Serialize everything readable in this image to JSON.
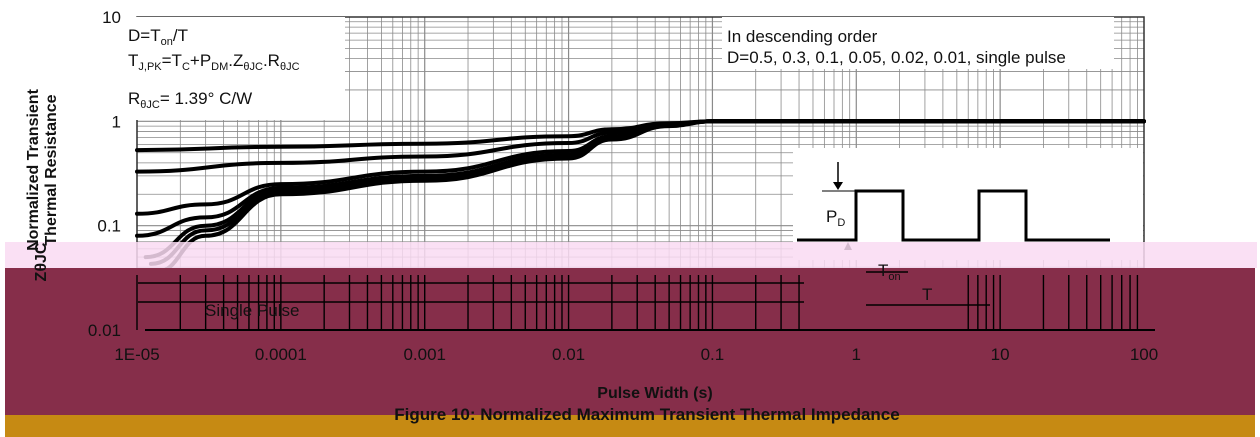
{
  "chart_data": {
    "type": "line",
    "x_scale": "log",
    "y_scale": "log",
    "xlim": [
      1e-05,
      100
    ],
    "ylim": [
      0.01,
      10
    ],
    "x_ticks": [
      "1E-05",
      "0.0001",
      "0.001",
      "0.01",
      "0.1",
      "1",
      "10",
      "100"
    ],
    "y_ticks": [
      "10",
      "1",
      "0.1",
      "0.01"
    ],
    "xlabel": "Pulse Width (s)",
    "ylabel_line1": "Normalized Transient",
    "ylabel_line2": "Thermal Resistance",
    "ylabel_symbol": "ZθJC",
    "grid": true,
    "series": [
      {
        "name": "D=0.5",
        "x": [
          1e-05,
          0.0001,
          0.001,
          0.01,
          0.02,
          0.05,
          0.1,
          1,
          100
        ],
        "y": [
          0.53,
          0.57,
          0.61,
          0.72,
          0.84,
          0.96,
          1.0,
          1.0,
          1.0
        ]
      },
      {
        "name": "D=0.3",
        "x": [
          1e-05,
          0.0001,
          0.001,
          0.01,
          0.02,
          0.05,
          0.1,
          1,
          100
        ],
        "y": [
          0.33,
          0.4,
          0.46,
          0.62,
          0.78,
          0.94,
          1.0,
          1.0,
          1.0
        ]
      },
      {
        "name": "D=0.1",
        "x": [
          1e-05,
          3e-05,
          0.0001,
          0.001,
          0.01,
          0.02,
          0.05,
          0.1,
          1,
          100
        ],
        "y": [
          0.13,
          0.16,
          0.25,
          0.33,
          0.52,
          0.72,
          0.93,
          1.0,
          1.0,
          1.0
        ]
      },
      {
        "name": "D=0.05",
        "x": [
          1e-05,
          3e-05,
          0.0001,
          0.001,
          0.01,
          0.02,
          0.05,
          0.1,
          1,
          100
        ],
        "y": [
          0.08,
          0.12,
          0.23,
          0.3,
          0.48,
          0.7,
          0.92,
          1.0,
          1.0,
          1.0
        ]
      },
      {
        "name": "D=0.02",
        "x": [
          1.15e-05,
          3e-05,
          0.0001,
          0.001,
          0.01,
          0.02,
          0.05,
          0.1,
          1,
          100
        ],
        "y": [
          0.05,
          0.1,
          0.22,
          0.29,
          0.46,
          0.69,
          0.92,
          1.0,
          1.0,
          1.0
        ]
      },
      {
        "name": "D=0.01",
        "x": [
          1.25e-05,
          3e-05,
          0.0001,
          0.001,
          0.01,
          0.02,
          0.05,
          0.1,
          1,
          100
        ],
        "y": [
          0.043,
          0.09,
          0.21,
          0.28,
          0.45,
          0.68,
          0.91,
          1.0,
          1.0,
          1.0
        ]
      },
      {
        "name": "single pulse",
        "x": [
          1.35e-05,
          3e-05,
          0.0001,
          0.001,
          0.01,
          0.02,
          0.05,
          0.1,
          1,
          100
        ],
        "y": [
          0.036,
          0.08,
          0.2,
          0.27,
          0.44,
          0.67,
          0.9,
          1.0,
          1.0,
          1.0
        ]
      }
    ],
    "annotations": {
      "formula_box": {
        "line1": {
          "a": "D=T",
          "sub": "on",
          "b": "/T"
        },
        "line2": {
          "p1": "T",
          "s1": "J,PK",
          "p2": "=T",
          "s2": "C",
          "p3": "+P",
          "s3": "DM",
          "p4": ".Z",
          "s4": "θJC",
          "p5": ".R",
          "s5": "θJC"
        },
        "line3": {
          "p1": "R",
          "s1": "θJC",
          "p2": "= 1.39°  C/W"
        }
      },
      "order_note": {
        "line1": "In descending order",
        "line2": "D=0.5, 0.3, 0.1, 0.05, 0.02, 0.01, single pulse"
      },
      "single_pulse_label": "Single Pulse",
      "pulse_diagram": {
        "pd": "P",
        "pd_sub": "D",
        "ton": "T",
        "ton_sub": "on",
        "t": "T"
      }
    },
    "caption": "Figure 10: Normalized Maximum Transient Thermal Impedance",
    "colors": {
      "curve": "#000000",
      "grid": "#8a8a8a",
      "overlay_band": "#f9dbf2",
      "overlay_block": "#862e4a",
      "bottom_strip": "#c68a13"
    }
  }
}
